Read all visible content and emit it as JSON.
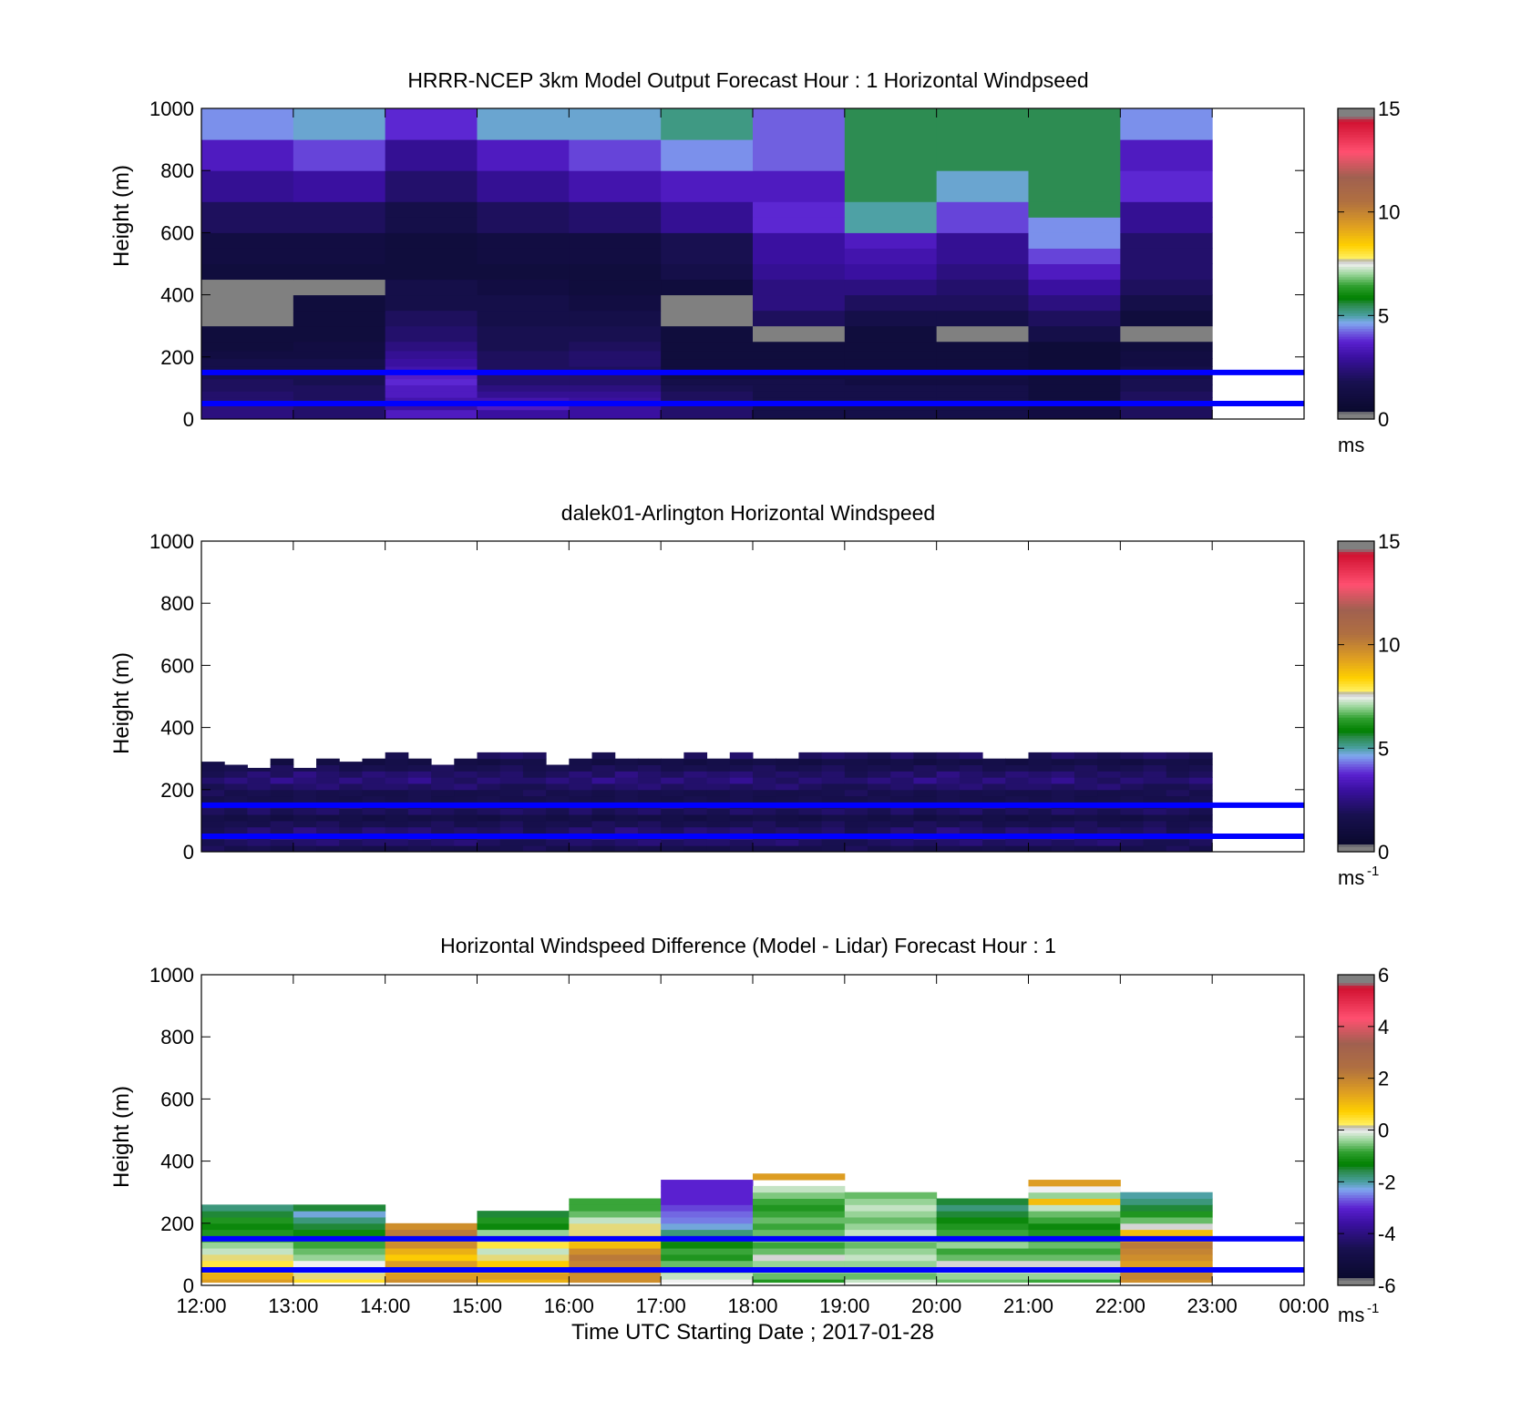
{
  "figure": {
    "xlabel": "Time UTC  Starting Date ; 2017-01-28",
    "x_ticks": [
      "12:00",
      "13:00",
      "14:00",
      "15:00",
      "16:00",
      "17:00",
      "18:00",
      "19:00",
      "20:00",
      "21:00",
      "22:00",
      "23:00",
      "00:00"
    ],
    "y_ticks": [
      "0",
      "200",
      "400",
      "600",
      "800",
      "1000"
    ],
    "ylabel": "Height (m)"
  },
  "colors": {
    "reference_line": "#0000ff",
    "background": "#ffffff",
    "colormap": [
      [
        0.0,
        "#808080"
      ],
      [
        0.02,
        "#808080"
      ],
      [
        0.025,
        "#0a0a2e"
      ],
      [
        0.12,
        "#181050"
      ],
      [
        0.2,
        "#3a10a0"
      ],
      [
        0.25,
        "#5a20d0"
      ],
      [
        0.28,
        "#7060e0"
      ],
      [
        0.31,
        "#80a8f0"
      ],
      [
        0.335,
        "#4aa0a0"
      ],
      [
        0.37,
        "#2a8a4a"
      ],
      [
        0.39,
        "#008000"
      ],
      [
        0.43,
        "#30a030"
      ],
      [
        0.47,
        "#a0d8a0"
      ],
      [
        0.5,
        "#f0f0f0"
      ],
      [
        0.51,
        "#b0b0b0"
      ],
      [
        0.52,
        "#ffef60"
      ],
      [
        0.56,
        "#ffd000"
      ],
      [
        0.62,
        "#e0a020"
      ],
      [
        0.7,
        "#b07040"
      ],
      [
        0.78,
        "#a06050"
      ],
      [
        0.86,
        "#ff5070"
      ],
      [
        0.96,
        "#d01030"
      ],
      [
        0.975,
        "#808080"
      ],
      [
        1.0,
        "#808080"
      ]
    ]
  },
  "chart_data": [
    {
      "type": "heatmap",
      "title": "HRRR-NCEP 3km Model Output   Forecast Hour : 1 Horizontal Windpseed",
      "clim": [
        0,
        15
      ],
      "colorbar_ticks": [
        "0",
        "5",
        "10",
        "15"
      ],
      "colorbar_unit": "ms",
      "colorbar_unit_sup": "",
      "reference_lines_m": [
        50,
        150
      ],
      "ylim": [
        0,
        1000
      ],
      "x_hours": [
        12,
        24
      ],
      "heights_m": [
        0,
        30,
        50,
        70,
        90,
        110,
        130,
        150,
        170,
        195,
        220,
        250,
        300,
        350,
        400,
        450,
        500,
        550,
        600,
        650,
        700,
        800,
        900,
        1000
      ],
      "values": [
        [
          2.5,
          2.2,
          3.5,
          3.0,
          3.0,
          2.2,
          1.5,
          1.5,
          1.5,
          1.2,
          2.0
        ],
        [
          2.5,
          2.2,
          3.0,
          3.5,
          3.0,
          2.2,
          1.5,
          1.5,
          1.5,
          1.2,
          2.0
        ],
        [
          2.2,
          2.0,
          3.2,
          3.2,
          3.0,
          2.0,
          1.5,
          1.5,
          1.5,
          1.0,
          2.0
        ],
        [
          2.2,
          2.0,
          3.5,
          2.8,
          2.8,
          2.0,
          1.5,
          1.5,
          1.5,
          1.0,
          2.0
        ],
        [
          2.0,
          2.0,
          3.5,
          2.5,
          2.5,
          1.8,
          1.5,
          1.5,
          1.5,
          1.0,
          1.8
        ],
        [
          2.0,
          1.8,
          3.8,
          2.2,
          2.2,
          1.5,
          1.5,
          1.2,
          1.2,
          1.0,
          1.8
        ],
        [
          1.8,
          1.8,
          3.6,
          2.2,
          2.2,
          1.2,
          1.2,
          1.2,
          1.2,
          0.9,
          1.5
        ],
        [
          1.5,
          1.5,
          3.2,
          2.0,
          2.0,
          1.0,
          1.0,
          1.0,
          1.0,
          0.8,
          1.5
        ],
        [
          1.5,
          1.5,
          3.0,
          2.0,
          2.2,
          1.0,
          1.0,
          1.0,
          1.0,
          0.8,
          1.2
        ],
        [
          1.2,
          1.2,
          2.8,
          2.0,
          2.2,
          1.0,
          1.0,
          1.0,
          1.0,
          0.8,
          1.2
        ],
        [
          1.0,
          1.2,
          2.5,
          1.8,
          2.0,
          1.0,
          1.0,
          1.0,
          1.0,
          0.8,
          1.0
        ],
        [
          1.0,
          1.0,
          2.2,
          1.8,
          1.8,
          1.0,
          0.1,
          1.0,
          0.1,
          1.5,
          0.1
        ],
        [
          0.1,
          1.0,
          2.0,
          1.5,
          1.5,
          0.1,
          2.0,
          1.5,
          1.5,
          2.0,
          1.0
        ],
        [
          0.1,
          1.0,
          1.5,
          1.5,
          1.2,
          0.1,
          2.5,
          2.0,
          2.0,
          2.5,
          1.5
        ],
        [
          0.1,
          0.1,
          1.5,
          1.2,
          1.0,
          1.0,
          2.5,
          2.5,
          2.2,
          3.0,
          2.0
        ],
        [
          1.0,
          1.0,
          1.0,
          1.0,
          1.0,
          1.5,
          2.8,
          3.0,
          2.5,
          3.5,
          2.2
        ],
        [
          1.2,
          1.2,
          1.0,
          1.2,
          1.2,
          1.8,
          3.0,
          3.2,
          2.8,
          4.0,
          2.2
        ],
        [
          1.2,
          1.2,
          1.0,
          1.2,
          1.2,
          1.8,
          3.0,
          3.5,
          2.8,
          4.5,
          2.2
        ],
        [
          2.0,
          2.0,
          1.5,
          2.0,
          2.2,
          2.8,
          3.8,
          5.0,
          4.0,
          4.5,
          2.8
        ],
        [
          2.0,
          2.0,
          1.5,
          2.0,
          2.2,
          2.8,
          3.8,
          5.0,
          4.0,
          5.5,
          2.8
        ],
        [
          2.8,
          3.0,
          2.2,
          2.8,
          3.2,
          3.5,
          3.5,
          5.5,
          4.8,
          5.5,
          3.8
        ],
        [
          3.5,
          4.0,
          2.8,
          3.5,
          4.0,
          4.5,
          4.2,
          5.5,
          5.5,
          5.5,
          3.5
        ],
        [
          4.5,
          4.8,
          3.8,
          4.8,
          4.8,
          5.2,
          4.2,
          5.5,
          5.5,
          5.5,
          4.5
        ]
      ]
    },
    {
      "type": "heatmap",
      "title": "dalek01-Arlington  Horizontal Windspeed",
      "clim": [
        0,
        15
      ],
      "colorbar_ticks": [
        "0",
        "5",
        "10",
        "15"
      ],
      "colorbar_unit": "ms",
      "colorbar_unit_sup": "-1",
      "reference_lines_m": [
        50,
        150
      ],
      "ylim": [
        0,
        1000
      ],
      "x_hours": [
        12,
        24
      ],
      "time_step_h": 0.25,
      "levels": [
        0,
        20,
        40,
        60,
        80,
        100,
        120,
        140,
        160,
        180,
        200,
        220,
        240,
        260,
        280,
        300
      ],
      "layer_height_m": 20,
      "values": [
        [
          2.0,
          1.6,
          1.8,
          1.5,
          1.8,
          1.6,
          1.7,
          1.5,
          1.5,
          1.8,
          1.6,
          1.5,
          1.6,
          1.7
        ],
        [
          1.8,
          2.0,
          2.2,
          2.0,
          2.2,
          2.4,
          2.0,
          2.2,
          2.2,
          2.0,
          2.2,
          2.4,
          2.0,
          1.8
        ],
        [
          2.2,
          2.5,
          2.2,
          2.8,
          2.4,
          2.2,
          2.6,
          2.2,
          2.4,
          2.8,
          2.2,
          2.0,
          2.4,
          2.2
        ],
        [
          1.8,
          2.0,
          2.4,
          2.0,
          2.6,
          2.2,
          2.0,
          2.4,
          2.2,
          2.4,
          2.0,
          2.2,
          2.0,
          2.2
        ],
        [
          1.6,
          1.8,
          1.6,
          2.0,
          1.8,
          2.0,
          1.6,
          1.8,
          1.6,
          1.8,
          2.0,
          1.6,
          1.8,
          2.0
        ],
        [
          1.5,
          1.3,
          1.5,
          1.2,
          1.5,
          1.3,
          1.5,
          1.2,
          1.5,
          1.3,
          1.5,
          1.4,
          1.2,
          1.5
        ],
        [
          2.0,
          1.8,
          2.2,
          1.8,
          2.0,
          2.2,
          1.8,
          2.0,
          1.8,
          2.2,
          2.0,
          1.8,
          2.0,
          2.2
        ],
        [
          2.2,
          2.0,
          2.4,
          2.2,
          2.0,
          2.2,
          2.6,
          2.0,
          2.4,
          2.0,
          2.2,
          2.4,
          2.2,
          2.0
        ],
        [
          1.6,
          1.8,
          1.6,
          1.5,
          1.8,
          1.6,
          1.5,
          1.8,
          1.6,
          1.8,
          1.5,
          1.6,
          1.8,
          1.6
        ]
      ],
      "top_m": [
        290,
        280,
        270,
        300,
        270,
        300,
        290,
        300,
        340,
        300,
        280,
        300,
        380,
        380,
        380,
        280,
        300,
        330,
        300,
        300,
        300,
        320,
        300,
        340,
        300,
        300,
        340,
        340,
        320,
        330,
        330,
        320,
        330,
        340,
        300,
        300,
        350,
        340,
        330,
        340,
        320,
        340,
        340,
        350
      ]
    },
    {
      "type": "heatmap",
      "title": "Horizontal Windspeed Difference (Model - Lidar) Forecast Hour : 1",
      "clim": [
        -6,
        6
      ],
      "colorbar_ticks": [
        "-6",
        "-4",
        "-2",
        "0",
        "2",
        "4",
        "6"
      ],
      "colorbar_unit": "ms",
      "colorbar_unit_sup": "-1",
      "reference_lines_m": [
        50,
        150
      ],
      "ylim": [
        0,
        1000
      ],
      "x_hours": [
        12,
        24
      ],
      "heights_m": [
        20,
        40,
        60,
        80,
        100,
        120,
        140,
        160,
        180,
        200,
        220,
        240,
        260,
        280,
        300,
        320,
        340,
        360
      ],
      "values": [
        [
          1.5,
          1.2,
          0.8,
          0.4,
          0.2,
          -0.2,
          -0.4,
          -0.8,
          -1.0,
          -1.2,
          -1.0,
          -1.5,
          -1.8,
          null,
          null,
          null,
          null,
          null
        ],
        [
          0.5,
          0.2,
          -0.2,
          0.0,
          -0.4,
          -0.6,
          -0.8,
          -0.8,
          -1.2,
          -1.5,
          -1.8,
          -2.2,
          -1.5,
          null,
          null,
          null,
          null,
          null
        ],
        [
          1.8,
          1.5,
          1.0,
          1.5,
          0.8,
          1.2,
          1.8,
          1.5,
          2.2,
          1.8,
          null,
          null,
          null,
          null,
          null,
          null,
          null,
          null
        ],
        [
          1.2,
          1.5,
          1.0,
          0.8,
          0.2,
          -0.2,
          0.4,
          0.2,
          -0.4,
          -1.2,
          -1.0,
          -1.5,
          null,
          null,
          null,
          null,
          null,
          null
        ],
        [
          1.8,
          1.8,
          2.2,
          2.0,
          2.2,
          1.8,
          1.0,
          0.6,
          0.2,
          0.2,
          -0.2,
          -0.6,
          -0.8,
          -0.8,
          null,
          null,
          null,
          null
        ],
        [
          0.0,
          -0.2,
          -0.4,
          -0.6,
          -1.0,
          -0.8,
          -1.2,
          -1.5,
          -1.8,
          -2.2,
          -2.5,
          -2.6,
          -2.8,
          -3.0,
          -3.0,
          -3.0,
          -3.0,
          null
        ],
        [
          -1.0,
          -0.6,
          -0.4,
          -0.4,
          0.05,
          -0.6,
          -0.8,
          -0.4,
          -0.6,
          -0.8,
          -0.6,
          -0.8,
          -1.0,
          -0.8,
          -0.5,
          -0.2,
          null,
          1.5
        ],
        [
          -0.2,
          -0.6,
          -0.4,
          -0.4,
          -0.2,
          -0.4,
          -0.6,
          -0.4,
          -0.2,
          -0.4,
          -0.6,
          -0.4,
          -0.2,
          -0.4,
          -0.6,
          null,
          null,
          null
        ],
        [
          -0.6,
          -0.4,
          -0.2,
          0.05,
          -0.6,
          -0.8,
          -0.4,
          -0.6,
          -0.8,
          -1.0,
          -1.2,
          -1.5,
          -1.8,
          -1.5,
          null,
          null,
          null,
          null
        ],
        [
          -0.8,
          -0.4,
          0.05,
          0.05,
          -0.6,
          -0.8,
          -0.6,
          -0.8,
          -1.0,
          -1.2,
          -0.8,
          -0.6,
          -0.2,
          1.0,
          -0.4,
          0.0,
          1.5,
          null
        ],
        [
          1.8,
          2.0,
          1.8,
          1.5,
          1.8,
          2.0,
          2.2,
          1.5,
          1.0,
          0.05,
          -0.6,
          -1.0,
          -1.5,
          -1.8,
          -2.0,
          null,
          null,
          null
        ]
      ]
    }
  ]
}
